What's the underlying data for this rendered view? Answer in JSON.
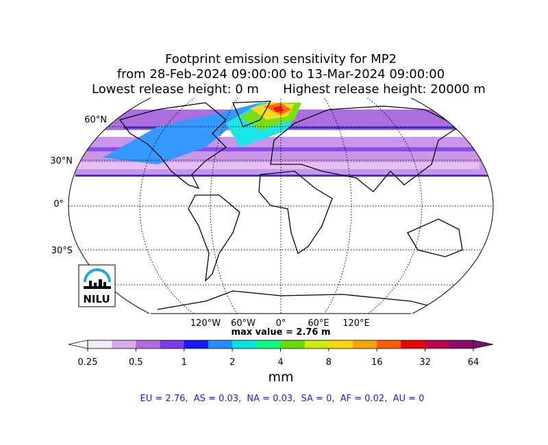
{
  "title": [
    "Footprint emission sensitivity for MP2",
    "from 28-Feb-2024 09:00:00 to 13-Mar-2024 09:00:00"
  ],
  "release": [
    "Lowest release height: 0 m",
    "Highest release height: 20000 m"
  ],
  "map": {
    "lat_labels": [
      "60°N",
      "30°N",
      "0°",
      "30°S"
    ],
    "lon_labels": [
      "120°W",
      "60°W",
      "0°",
      "60°E",
      "120°E"
    ],
    "logo": "NILU"
  },
  "max_value": "max value = 2.76 m",
  "colorbar": {
    "range": [
      0.25,
      64
    ],
    "log": true,
    "ticks": [
      0.25,
      0.5,
      1,
      2,
      4,
      8,
      16,
      32,
      64
    ],
    "colors": [
      "#f4e8fb",
      "#d9a9ee",
      "#b469de",
      "#7a3cf0",
      "#1a1aff",
      "#1e90ff",
      "#00e5e5",
      "#00ff7f",
      "#66dd00",
      "#ccee00",
      "#ffd700",
      "#ffa500",
      "#ff5a00",
      "#ee0000",
      "#c00050",
      "#8b0a6a"
    ],
    "under_color": "#ffffff",
    "over_color": "#7b1070",
    "label": "mm"
  },
  "stats": "EU = 2.76,  AS = 0.03,  NA = 0.03,  SA = 0,  AF = 0.02,  AU = 0"
}
